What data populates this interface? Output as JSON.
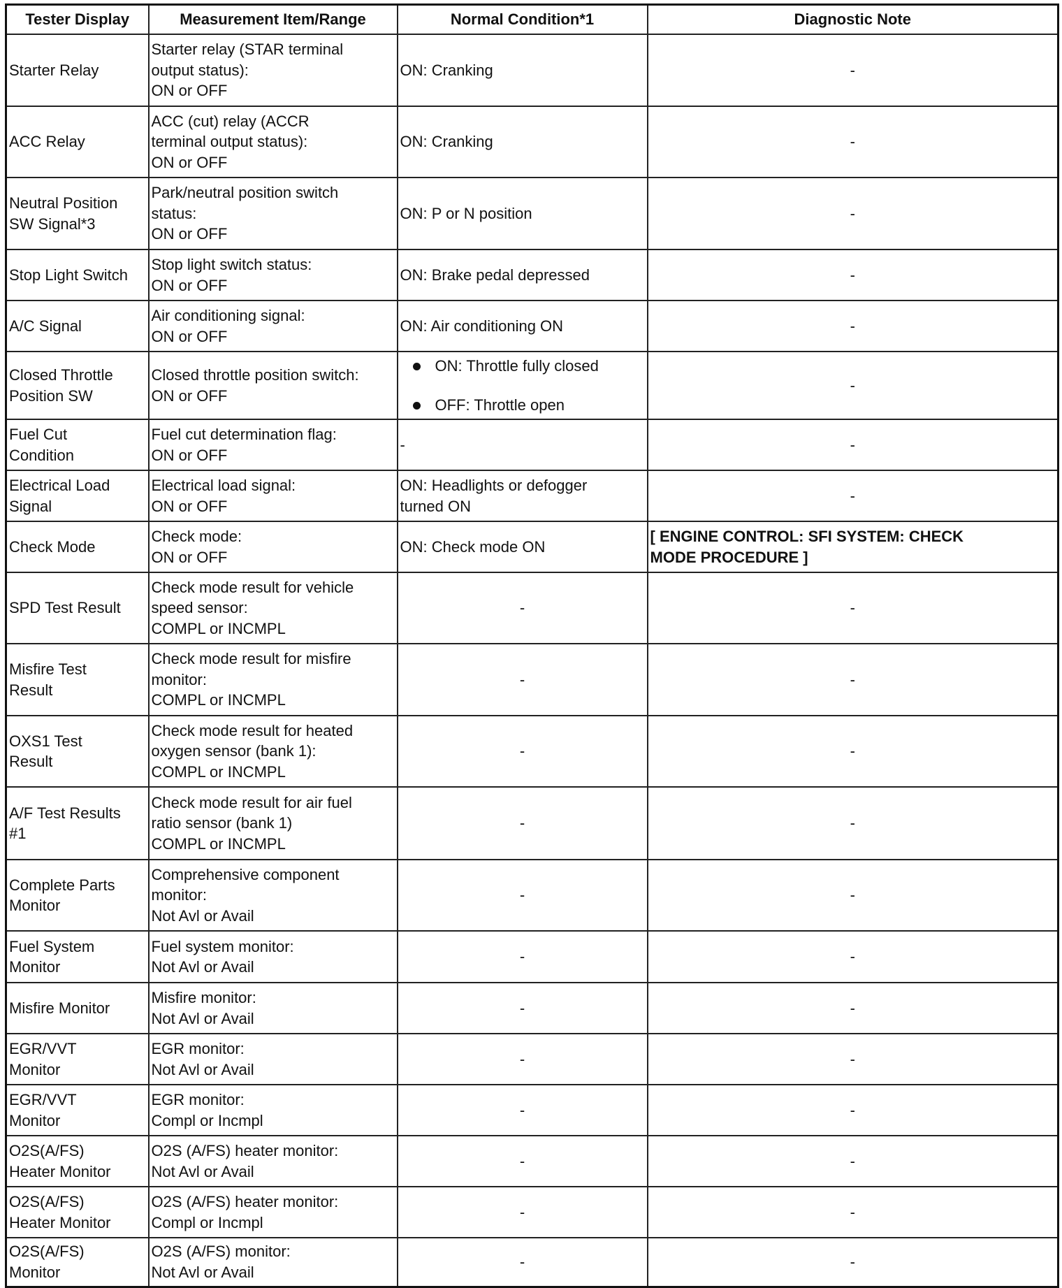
{
  "headers": [
    "Tester Display",
    "Measurement Item/Range",
    "Normal Condition*1",
    "Diagnostic Note"
  ],
  "rows": [
    {
      "tester": "Starter Relay",
      "item": "Starter relay (STAR terminal\noutput status):\nON or OFF",
      "normal": "ON: Cranking",
      "note": "-"
    },
    {
      "tester": "ACC Relay",
      "item": "ACC (cut) relay (ACCR\nterminal output status):\nON or OFF",
      "normal": "ON: Cranking",
      "note": "-"
    },
    {
      "tester": "Neutral Position\nSW Signal*3",
      "item": "Park/neutral position switch\nstatus:\nON or OFF",
      "normal": "ON: P or N position",
      "note": "-"
    },
    {
      "tester": "Stop Light Switch",
      "item": "Stop light switch status:\nON or OFF",
      "normal": "ON: Brake pedal depressed",
      "note": "-"
    },
    {
      "tester": "A/C Signal",
      "item": "Air conditioning signal:\nON or OFF",
      "normal": "ON: Air conditioning ON",
      "note": "-"
    },
    {
      "tester": "Closed Throttle\nPosition SW",
      "item": "Closed throttle position switch:\nON or OFF",
      "normal_list": [
        "ON: Throttle fully closed",
        "OFF: Throttle open"
      ],
      "note": "-"
    },
    {
      "tester": "Fuel Cut\nCondition",
      "item": "Fuel cut determination flag:\nON or OFF",
      "normal": "-",
      "note": "-"
    },
    {
      "tester": "Electrical Load\nSignal",
      "item": "Electrical load signal:\nON or OFF",
      "normal": "ON: Headlights or defogger\nturned ON",
      "note": "-"
    },
    {
      "tester": "Check Mode",
      "item": "Check mode:\nON or OFF",
      "normal": "ON: Check mode ON",
      "note": "[ ENGINE CONTROL: SFI SYSTEM: CHECK\nMODE PROCEDURE ]"
    },
    {
      "tester": "SPD Test Result",
      "item": "Check mode result for vehicle\nspeed sensor:\nCOMPL or INCMPL",
      "normal": "-",
      "note": "-"
    },
    {
      "tester": "Misfire Test\nResult",
      "item": "Check mode result for misfire\nmonitor:\nCOMPL or INCMPL",
      "normal": "-",
      "note": "-"
    },
    {
      "tester": "OXS1 Test\nResult",
      "item": "Check mode result for heated\noxygen sensor (bank 1):\nCOMPL or INCMPL",
      "normal": "-",
      "note": "-"
    },
    {
      "tester": "A/F Test Results\n#1",
      "item": "Check mode result for air fuel\nratio sensor (bank 1)\nCOMPL or INCMPL",
      "normal": "-",
      "note": "-"
    },
    {
      "tester": "Complete Parts\nMonitor",
      "item": "Comprehensive component\nmonitor:\nNot Avl or Avail",
      "normal": "-",
      "note": "-"
    },
    {
      "tester": "Fuel System\nMonitor",
      "item": "Fuel system monitor:\nNot Avl or Avail",
      "normal": "-",
      "note": "-"
    },
    {
      "tester": "Misfire Monitor",
      "item": "Misfire monitor:\nNot Avl or Avail",
      "normal": "-",
      "note": "-"
    },
    {
      "tester": "EGR/VVT\nMonitor",
      "item": "EGR monitor:\nNot Avl or Avail",
      "normal": "-",
      "note": "-"
    },
    {
      "tester": "EGR/VVT\nMonitor",
      "item": "EGR monitor:\nCompl or Incmpl",
      "normal": "-",
      "note": "-"
    },
    {
      "tester": "O2S(A/FS)\nHeater Monitor",
      "item": "O2S (A/FS) heater monitor:\nNot Avl or Avail",
      "normal": "-",
      "note": "-"
    },
    {
      "tester": "O2S(A/FS)\nHeater Monitor",
      "item": "O2S (A/FS) heater monitor:\nCompl or Incmpl",
      "normal": "-",
      "note": "-"
    },
    {
      "tester": "O2S(A/FS)\nMonitor",
      "item": "O2S (A/FS) monitor:\nNot Avl or Avail",
      "normal": "-",
      "note": "-"
    }
  ]
}
